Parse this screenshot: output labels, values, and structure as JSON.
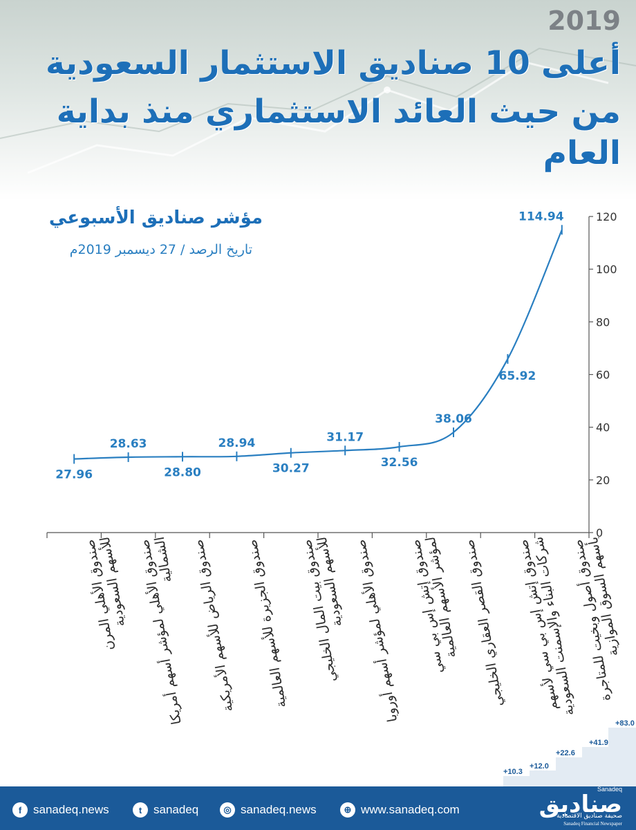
{
  "header": {
    "year": "2019",
    "title_line1": "أعلى 10 صناديق الاستثمار السعودية",
    "title_line2": "من حيث العائد الاستثماري منذ بداية العام"
  },
  "chart_data": {
    "type": "line",
    "title": "مؤشر صناديق الأسبوعي",
    "subtitle": "تاريخ الرصد / 27 ديسمبر 2019م",
    "categories": [
      "صندوق الأهلي المرن\nللأسهم السعودية",
      "صندوق الأهلي لمؤشر أسهم أمريكا الشمالية",
      "صندوق الرياض للأسهم الأمريكية",
      "صندوق الجزيرة للأسهم العالمية",
      "صندوق بيت المال الخليجي\nللأسهم السعودية",
      "صندوق الأهلي لمؤشر أسهم أوروبا",
      "صندوق إتش إس بي سي\nلمؤشر الأسهم العالمية",
      "صندوق القصر العقاري الخليجي",
      "صندوق إتش إس بي سي لأسهم\nشركات البناء والإسمنت السعودية",
      "صندوق أصول وبخيت للمتاجرة\nبأسهم السوق الموازية"
    ],
    "values": [
      27.96,
      28.63,
      28.8,
      28.94,
      30.27,
      31.17,
      32.56,
      38.06,
      65.92,
      114.94
    ],
    "value_labels": [
      "27.96",
      "28.63",
      "28.80",
      "28.94",
      "30.27",
      "31.17",
      "32.56",
      "38.06",
      "65.92",
      "114.94"
    ],
    "ylim": [
      0,
      120
    ],
    "yticks": [
      0,
      20,
      40,
      60,
      80,
      100,
      120
    ],
    "y_axis_side": "right",
    "line_color": "#2a7fc1",
    "grid": false,
    "legend": "none"
  },
  "decorations": {
    "stair_labels": [
      "+10.3",
      "+12.0",
      "+22.6",
      "+41.9",
      "+83.0"
    ]
  },
  "footer": {
    "facebook": "sanadeq.news",
    "twitter": "sanadeq",
    "instagram": "sanadeq.news",
    "website": "www.sanadeq.com",
    "logo_name": "صناديق",
    "logo_name_en": "Sanadeq",
    "logo_tagline_ar": "صحيفة صناديق الاقتصادية",
    "logo_tagline_en": "Sanadeq Financial Newspaper"
  },
  "colors": {
    "title": "#1d6fb8",
    "footer_bg": "#1b5a99",
    "axis": "#555555"
  }
}
